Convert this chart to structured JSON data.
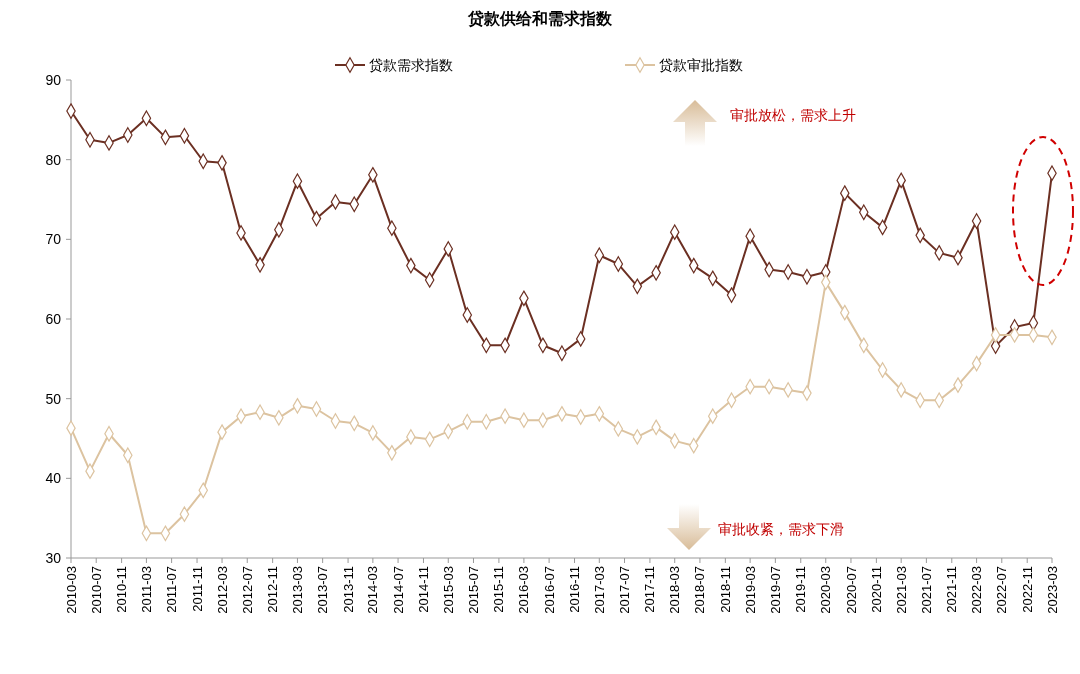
{
  "chart_data": {
    "type": "line",
    "title": "贷款供给和需求指数",
    "x": [
      "2010-03",
      "2010-06",
      "2010-09",
      "2010-12",
      "2011-03",
      "2011-06",
      "2011-09",
      "2011-12",
      "2012-03",
      "2012-06",
      "2012-09",
      "2012-12",
      "2013-03",
      "2013-06",
      "2013-09",
      "2013-12",
      "2014-03",
      "2014-06",
      "2014-09",
      "2014-12",
      "2015-03",
      "2015-06",
      "2015-09",
      "2015-12",
      "2016-03",
      "2016-06",
      "2016-09",
      "2016-12",
      "2017-03",
      "2017-06",
      "2017-09",
      "2017-12",
      "2018-03",
      "2018-06",
      "2018-09",
      "2018-12",
      "2019-03",
      "2019-06",
      "2019-09",
      "2019-12",
      "2020-03",
      "2020-06",
      "2020-09",
      "2020-12",
      "2021-03",
      "2021-06",
      "2021-09",
      "2021-12",
      "2022-03",
      "2022-06",
      "2022-09",
      "2022-12",
      "2023-03"
    ],
    "series": [
      {
        "name": "贷款需求指数",
        "color": "#6b2f22",
        "values": [
          86.1,
          82.5,
          82.1,
          83.1,
          85.2,
          82.8,
          83.0,
          79.8,
          79.6,
          70.8,
          66.8,
          71.2,
          77.3,
          72.6,
          74.7,
          74.4,
          78.1,
          71.4,
          66.7,
          64.9,
          68.8,
          60.5,
          56.7,
          56.7,
          62.6,
          56.7,
          55.7,
          57.5,
          68.0,
          66.9,
          64.1,
          65.8,
          70.9,
          66.7,
          65.1,
          63.0,
          70.4,
          66.2,
          65.9,
          65.3,
          65.9,
          75.8,
          73.4,
          71.5,
          77.4,
          70.5,
          68.3,
          67.7,
          72.3,
          56.6,
          59.0,
          59.5,
          78.3
        ]
      },
      {
        "name": "贷款审批指数",
        "color": "#dcc3a0",
        "values": [
          46.3,
          40.9,
          45.6,
          42.9,
          33.1,
          33.1,
          35.5,
          38.5,
          45.8,
          47.8,
          48.3,
          47.6,
          49.1,
          48.7,
          47.2,
          46.9,
          45.7,
          43.2,
          45.2,
          44.9,
          45.9,
          47.1,
          47.1,
          47.8,
          47.3,
          47.3,
          48.1,
          47.7,
          48.1,
          46.2,
          45.2,
          46.4,
          44.7,
          44.1,
          47.8,
          49.8,
          51.5,
          51.5,
          51.1,
          50.7,
          64.6,
          60.8,
          56.7,
          53.6,
          51.1,
          49.8,
          49.8,
          51.7,
          54.4,
          58.0,
          58.0,
          58.0,
          57.7
        ]
      }
    ],
    "xlim": [
      "2010-03",
      "2023-03"
    ],
    "xticks": [
      "2010-03",
      "2010-07",
      "2010-11",
      "2011-03",
      "2011-07",
      "2011-11",
      "2012-03",
      "2012-07",
      "2012-11",
      "2013-03",
      "2013-07",
      "2013-11",
      "2014-03",
      "2014-07",
      "2014-11",
      "2015-03",
      "2015-07",
      "2015-11",
      "2016-03",
      "2016-07",
      "2016-11",
      "2017-03",
      "2017-07",
      "2017-11",
      "2018-03",
      "2018-07",
      "2018-11",
      "2019-03",
      "2019-07",
      "2019-11",
      "2020-03",
      "2020-07",
      "2020-11",
      "2021-03",
      "2021-07",
      "2021-11",
      "2022-03",
      "2022-07",
      "2022-11",
      "2023-03"
    ],
    "ylim": [
      30,
      90
    ],
    "yticks": [
      30,
      40,
      50,
      60,
      70,
      80,
      90
    ],
    "marker": "diamond",
    "line_style": "solid",
    "legend": "top",
    "grid": false,
    "annotations": [
      "审批放松，需求上升",
      "审批收紧，需求下滑"
    ]
  }
}
